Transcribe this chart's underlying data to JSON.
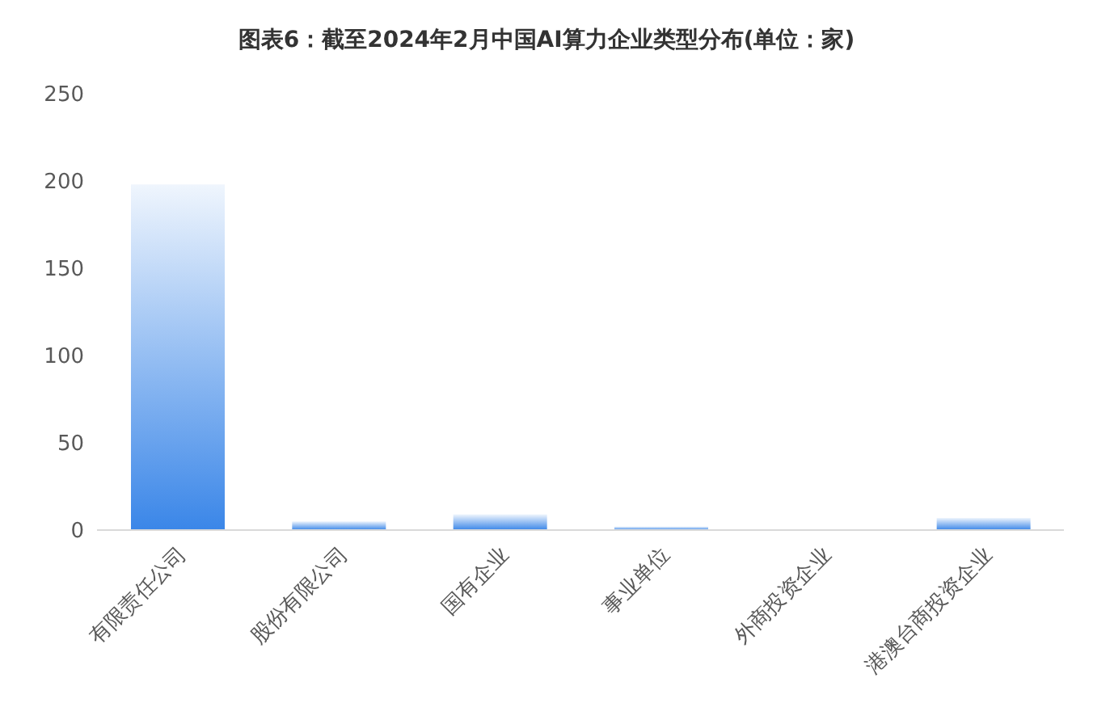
{
  "chart_data": {
    "type": "bar",
    "title": "图表6：截至2024年2月中国AI算力企业类型分布(单位：家)",
    "categories": [
      "有限责任公司",
      "股份有限公司",
      "国有企业",
      "事业单位",
      "外商投资企业",
      "港澳台商投资企业"
    ],
    "values": [
      198,
      5,
      9,
      2,
      0,
      7
    ],
    "color": "#3a86e8",
    "ylim": [
      0,
      250
    ],
    "yticks": [
      0,
      50,
      100,
      150,
      200,
      250
    ],
    "grid": false
  }
}
